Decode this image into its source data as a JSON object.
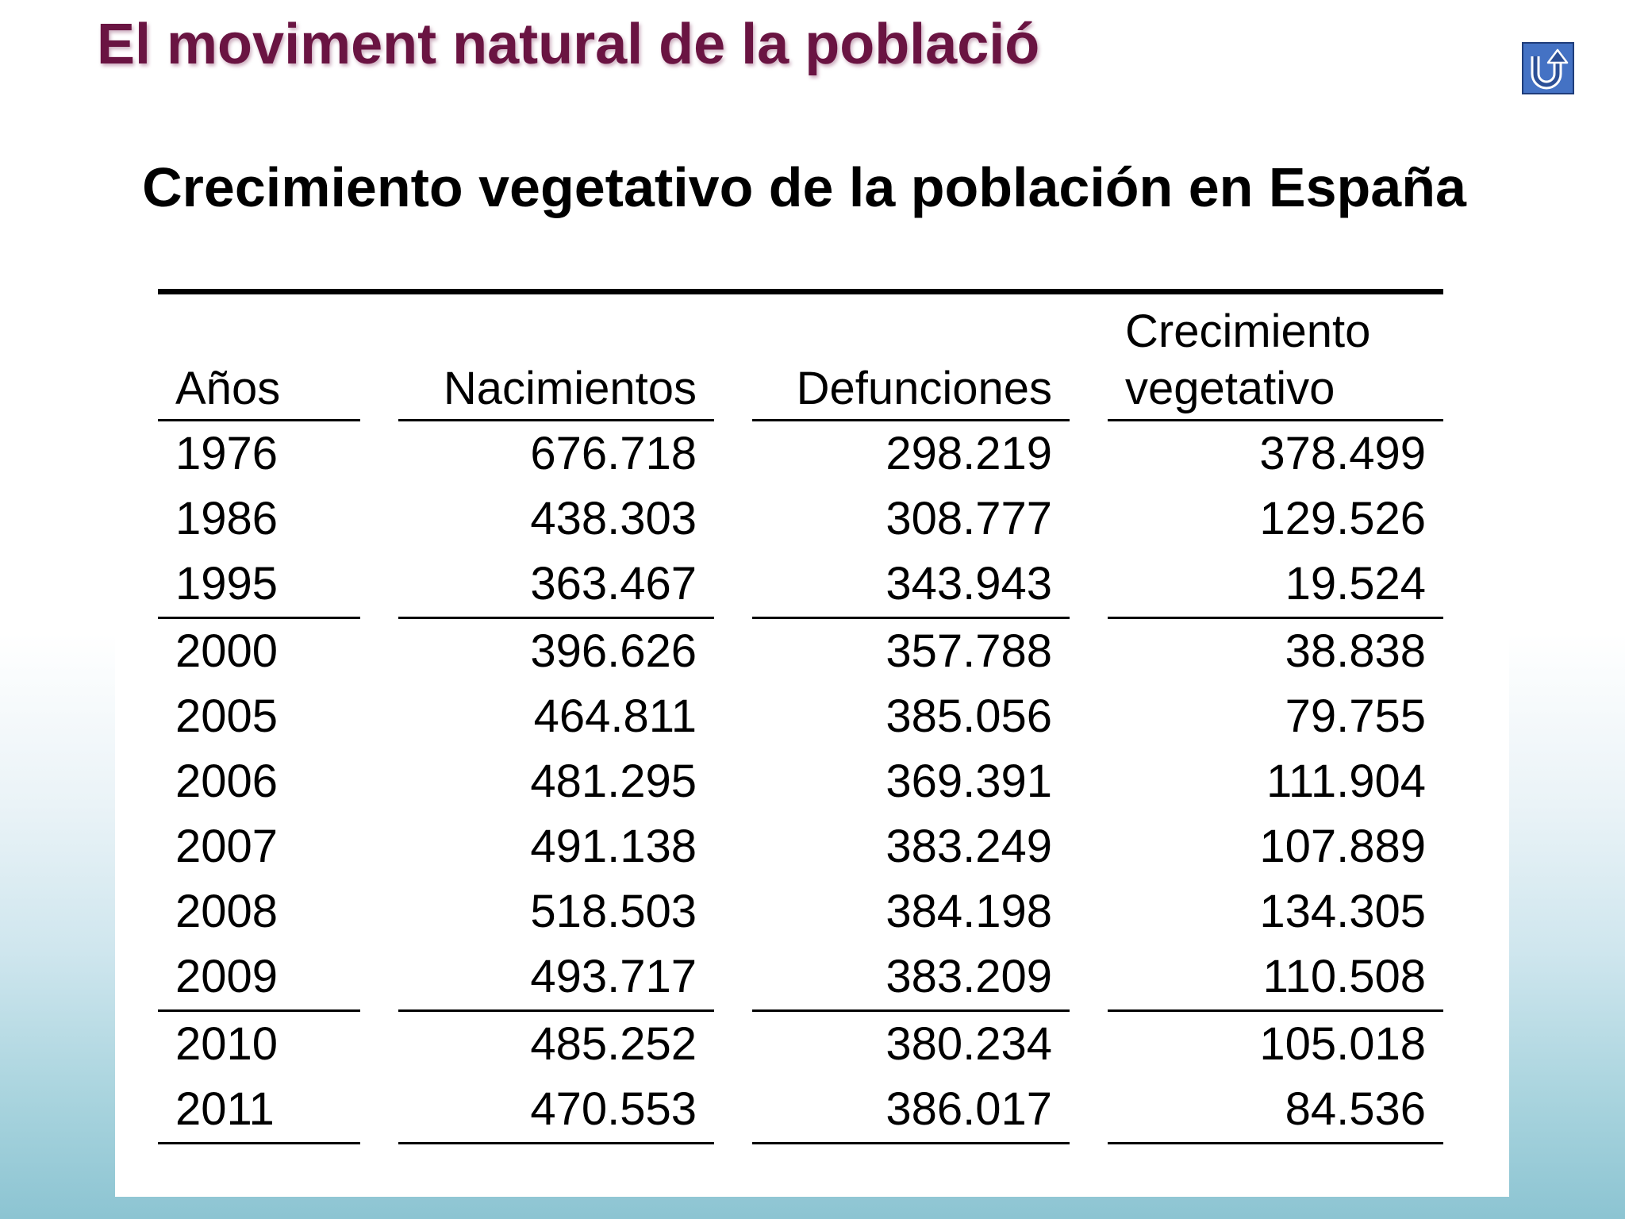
{
  "slide": {
    "title": "El moviment natural de la població"
  },
  "nav": {
    "back_icon": "return-arrow-icon",
    "back_button_color": "#4472c4"
  },
  "table": {
    "title": "Crecimiento vegetativo de la población en España",
    "headers": [
      "Años",
      "Nacimientos",
      "Defunciones",
      "Crecimiento vegetativo"
    ],
    "rows": [
      [
        "1976",
        "676.718",
        "298.219",
        "378.499"
      ],
      [
        "1986",
        "438.303",
        "308.777",
        "129.526"
      ],
      [
        "1995",
        "363.467",
        "343.943",
        "19.524"
      ],
      [
        "2000",
        "396.626",
        "357.788",
        "38.838"
      ],
      [
        "2005",
        "464.811",
        "385.056",
        "79.755"
      ],
      [
        "2006",
        "481.295",
        "369.391",
        "111.904"
      ],
      [
        "2007",
        "491.138",
        "383.249",
        "107.889"
      ],
      [
        "2008",
        "518.503",
        "384.198",
        "134.305"
      ],
      [
        "2009",
        "493.717",
        "383.209",
        "110.508"
      ],
      [
        "2010",
        "485.252",
        "380.234",
        "105.018"
      ],
      [
        "2011",
        "470.553",
        "386.017",
        "84.536"
      ]
    ]
  },
  "colors": {
    "title": "#6a1442",
    "background_bottom": "#8cc4d2"
  }
}
